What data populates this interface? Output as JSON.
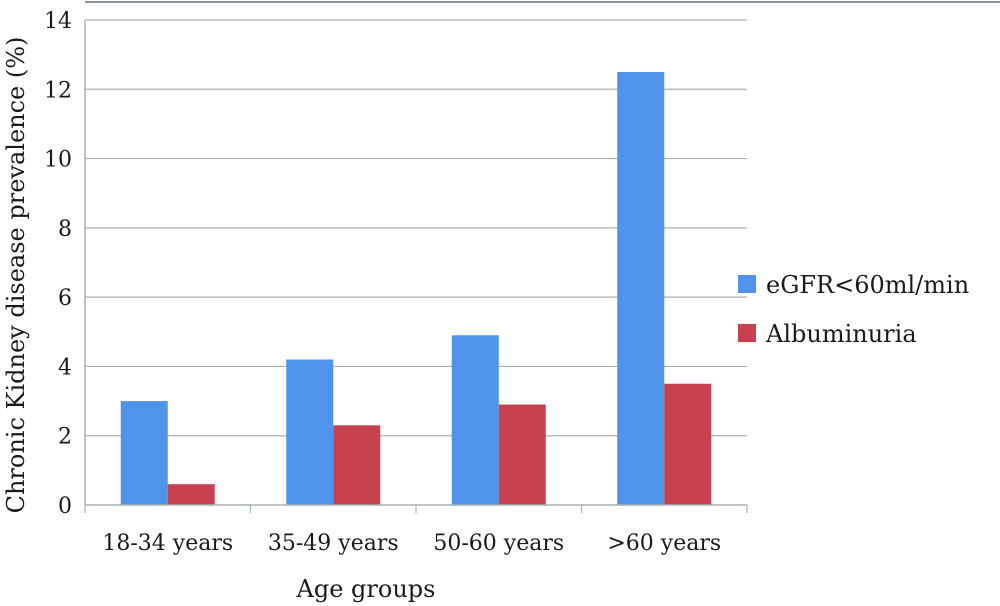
{
  "chart_data": {
    "type": "bar",
    "xlabel": "Age groups",
    "ylabel": "Chronic Kidney disease prevalence (%)",
    "categories": [
      "18-34 years",
      "35-49 years",
      "50-60 years",
      ">60 years"
    ],
    "series": [
      {
        "name": "eGFR<60ml/min",
        "color": "#4f94ea",
        "values": [
          3.0,
          4.2,
          4.9,
          12.5
        ]
      },
      {
        "name": "Albuminuria",
        "color": "#c8414f",
        "values": [
          0.6,
          2.3,
          2.9,
          3.5
        ]
      }
    ],
    "ylim": [
      0,
      14
    ],
    "yticks": [
      "0",
      "2",
      "4",
      "6",
      "8",
      "10",
      "12",
      "14"
    ],
    "grid": true,
    "legend_position": "right"
  }
}
